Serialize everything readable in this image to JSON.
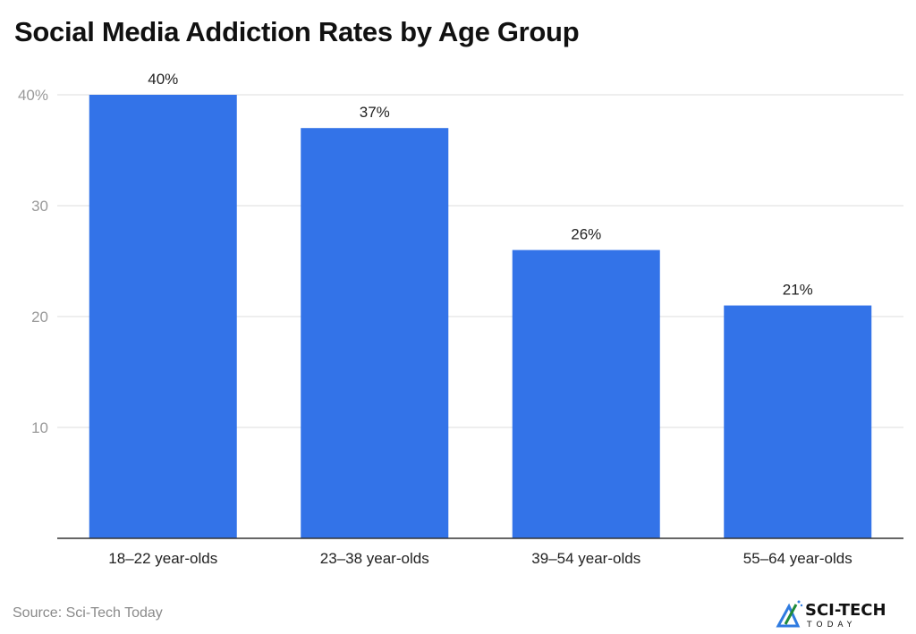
{
  "chart_data": {
    "type": "bar",
    "title": "Social Media Addiction Rates by Age Group",
    "xlabel": "",
    "ylabel": "",
    "categories": [
      "18–22 year-olds",
      "23–38 year-olds",
      "39–54 year-olds",
      "55–64 year-olds"
    ],
    "values": [
      40,
      37,
      26,
      21
    ],
    "data_labels": [
      "40%",
      "37%",
      "26%",
      "21%"
    ],
    "ylim": [
      0,
      40
    ],
    "yticks": [
      10,
      20,
      30,
      40
    ],
    "ytick_labels": [
      "10",
      "20",
      "30",
      "40%"
    ],
    "grid": true,
    "bar_color": "#3373E8"
  },
  "source": "Source: Sci-Tech Today",
  "logo": {
    "text_main": "SCI-TECH",
    "text_sub": "TODAY"
  }
}
